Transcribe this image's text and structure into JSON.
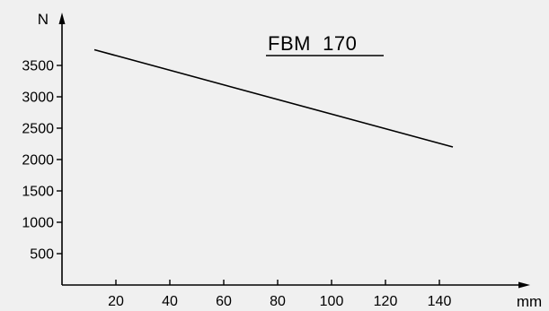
{
  "chart_data": {
    "type": "line",
    "title": "FBM  170",
    "xlabel": "mm",
    "ylabel": "N",
    "xlim": [
      0,
      160
    ],
    "ylim": [
      0,
      3900
    ],
    "x_ticks": [
      20,
      40,
      60,
      80,
      100,
      120,
      140
    ],
    "y_ticks": [
      500,
      1000,
      1500,
      2000,
      2500,
      3000,
      3500
    ],
    "grid": false,
    "series": [
      {
        "x": [
          12,
          145
        ],
        "y": [
          3750,
          2200
        ]
      }
    ],
    "colors": {
      "background": "#f0f0f0",
      "ink": "#000000"
    }
  }
}
